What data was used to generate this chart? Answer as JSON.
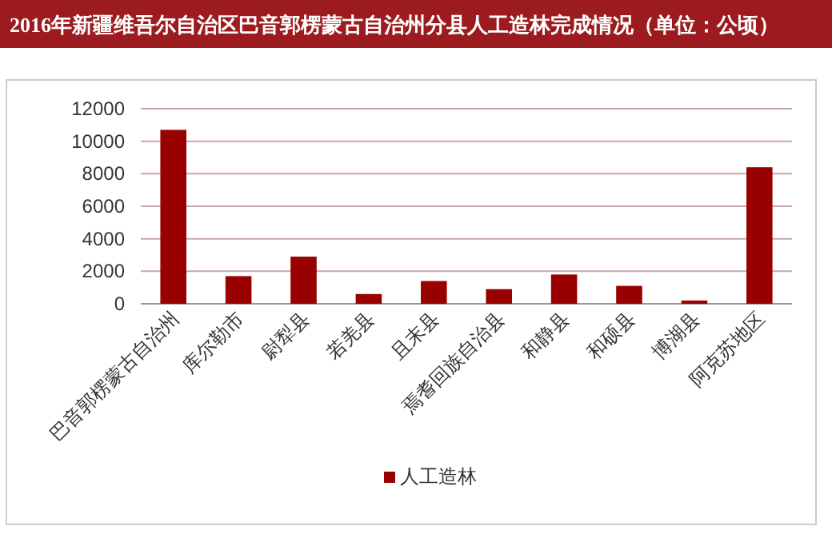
{
  "chart_data": {
    "type": "bar",
    "title": "2016年新疆维吾尔自治区巴音郭楞蒙古自治州分县人工造林完成情况（单位：公顷）",
    "categories": [
      "巴音郭楞蒙古自治州",
      "库尔勒市",
      "尉犁县",
      "若羌县",
      "且末县",
      "焉耆回族自治县",
      "和静县",
      "和硕县",
      "博湖县",
      "阿克苏地区"
    ],
    "series": [
      {
        "name": "人工造林",
        "color": "#990000",
        "values": [
          10700,
          1700,
          2900,
          600,
          1400,
          900,
          1800,
          1100,
          200,
          8400
        ]
      }
    ],
    "ylim": [
      0,
      12000
    ],
    "yticks": [
      0,
      2000,
      4000,
      6000,
      8000,
      10000,
      12000
    ],
    "grid": "y",
    "legend": "bottom"
  }
}
